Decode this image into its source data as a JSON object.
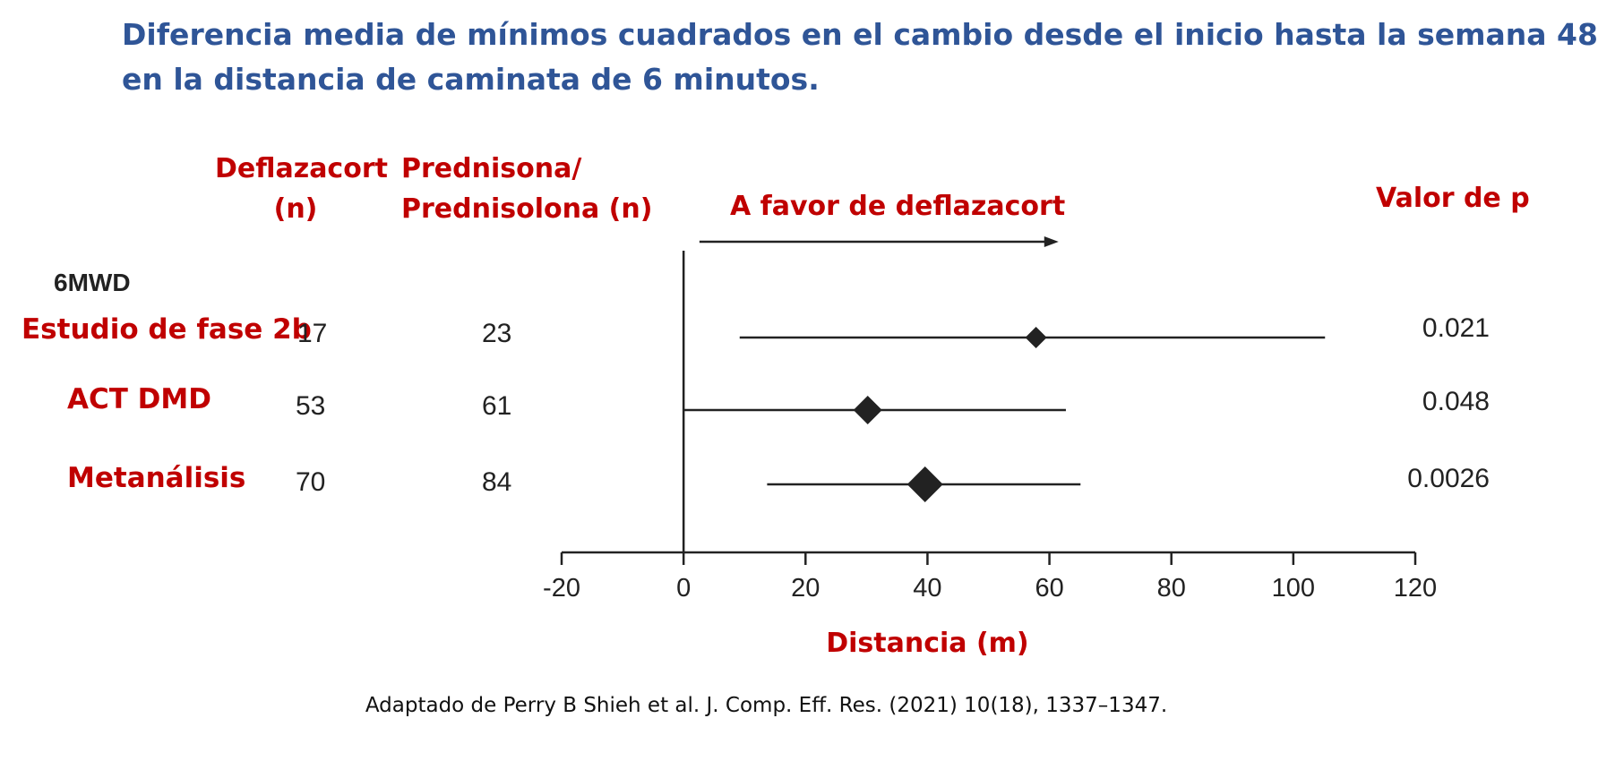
{
  "title": {
    "line1": "Diferencia media de mínimos cuadrados en el cambio desde el inicio hasta la semana 48",
    "line2": "en la distancia de caminata de 6 minutos."
  },
  "headers": {
    "deflazacort_line1": "Deflazacort",
    "deflazacort_line2": "(n)",
    "prednisona_line1": "Prednisona/",
    "prednisona_line2": "Prednisolona (n)",
    "favor": "A favor de deflazacort",
    "pvalue": "Valor de p"
  },
  "section_label": "6MWD",
  "rows": [
    {
      "label": "Estudio de fase 2b",
      "deflazacort_n": "17",
      "prednisone_n": "23",
      "p_value": "0.021"
    },
    {
      "label": "ACT DMD",
      "deflazacort_n": "53",
      "prednisone_n": "61",
      "p_value": "0.048"
    },
    {
      "label": "Metanálisis",
      "deflazacort_n": "70",
      "prednisone_n": "84",
      "p_value": "0.0026"
    }
  ],
  "source": "Adaptado de Perry B Shieh et al. J. Comp. Eff. Res. (2021) 10(18), 1337–1347.",
  "colors": {
    "title": "#2F5597",
    "labels": "#C00000",
    "marks": "#222222"
  },
  "chart_data": {
    "type": "forest",
    "title": "",
    "xlabel": "Distancia (m)",
    "xlim": [
      -20,
      120
    ],
    "xticks": [
      "-20",
      "0",
      "20",
      "40",
      "60",
      "80",
      "100",
      "120"
    ],
    "xtick_values": [
      -20,
      0,
      20,
      40,
      60,
      80,
      100,
      120
    ],
    "reference_line": 0,
    "series": [
      {
        "name": "Estudio de fase 2b",
        "estimate": 57.8,
        "ci_low": 9.2,
        "ci_high": 105.2
      },
      {
        "name": "ACT DMD",
        "estimate": 30.2,
        "ci_low": 0,
        "ci_high": 62.7
      },
      {
        "name": "Metanálisis",
        "estimate": 39.6,
        "ci_low": 13.7,
        "ci_high": 65.1
      }
    ]
  }
}
